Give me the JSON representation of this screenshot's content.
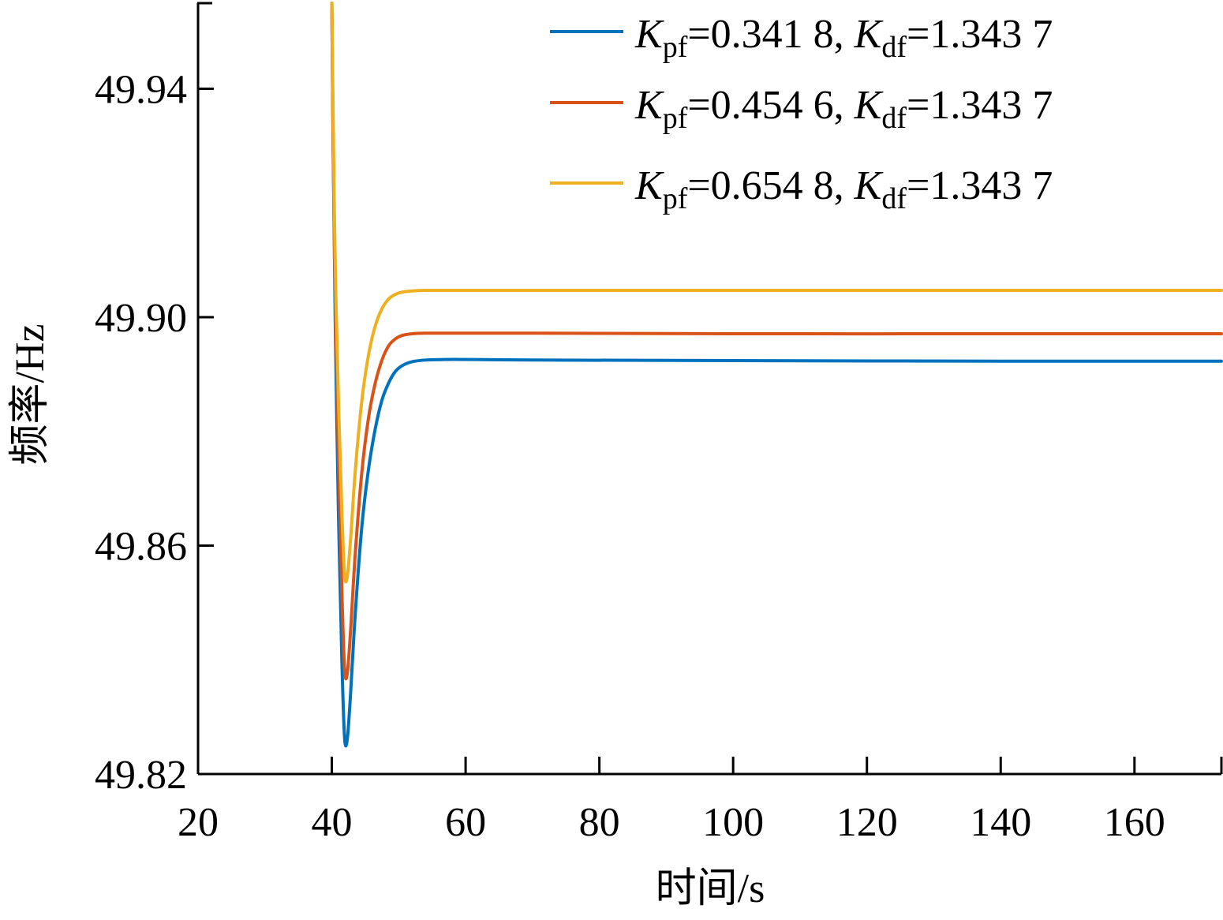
{
  "chart_data": {
    "type": "line",
    "title": "",
    "xlabel": "时间/s",
    "ylabel": "频率/Hz",
    "xlim": [
      20,
      173
    ],
    "ylim": [
      49.82,
      49.955
    ],
    "xticks": [
      20,
      40,
      60,
      80,
      100,
      120,
      140,
      160
    ],
    "yticks": [
      49.82,
      49.86,
      49.9,
      49.94
    ],
    "ytick_labels": [
      "49.82",
      "49.86",
      "49.90",
      "49.94"
    ],
    "grid": false,
    "legend_position": "top-right",
    "series": [
      {
        "name": "Kpf=0.341 8, Kdf=1.343 7",
        "legend": {
          "k1": "K",
          "s1": "pf",
          "v1": "=0.341 8, ",
          "k2": "K",
          "s2": "df",
          "v2": "=1.343 7"
        },
        "color": "#0072BD",
        "x": [
          40.0,
          40.2,
          40.5,
          41.0,
          41.5,
          41.9,
          42.3,
          42.8,
          43.5,
          44.5,
          45.5,
          46.5,
          47.5,
          48.5,
          49.5,
          50.5,
          52.0,
          54.0,
          57.0,
          60.0,
          70.0,
          100.0,
          140.0,
          173.0
        ],
        "y": [
          49.955,
          49.93,
          49.9,
          49.865,
          49.84,
          49.8265,
          49.826,
          49.834,
          49.848,
          49.8635,
          49.8735,
          49.8805,
          49.8855,
          49.8885,
          49.8905,
          49.8915,
          49.8922,
          49.8925,
          49.8926,
          49.8926,
          49.8925,
          49.8924,
          49.8923,
          49.8923
        ]
      },
      {
        "name": "Kpf=0.454 6, Kdf=1.343 7",
        "legend": {
          "k1": "K",
          "s1": "pf",
          "v1": "=0.454 6, ",
          "k2": "K",
          "s2": "df",
          "v2": "=1.343 7"
        },
        "color": "#D95319",
        "x": [
          40.0,
          40.2,
          40.5,
          41.0,
          41.5,
          41.9,
          42.3,
          42.8,
          43.5,
          44.5,
          45.5,
          46.5,
          47.5,
          48.5,
          49.5,
          50.5,
          52.0,
          54.0,
          57.0,
          60.0,
          70.0,
          100.0,
          140.0,
          173.0
        ],
        "y": [
          49.955,
          49.93,
          49.905,
          49.875,
          49.852,
          49.8385,
          49.8375,
          49.845,
          49.8585,
          49.873,
          49.8825,
          49.8885,
          49.8925,
          49.895,
          49.8962,
          49.8968,
          49.8971,
          49.8972,
          49.8972,
          49.8972,
          49.8972,
          49.8971,
          49.8971,
          49.8971
        ]
      },
      {
        "name": "Kpf=0.654 8, Kdf=1.343 7",
        "legend": {
          "k1": "K",
          "s1": "pf",
          "v1": "=0.654 8, ",
          "k2": "K",
          "s2": "df",
          "v2": "=1.343 7"
        },
        "color": "#EDB120",
        "x": [
          40.0,
          40.2,
          40.5,
          41.0,
          41.5,
          41.9,
          42.3,
          42.8,
          43.5,
          44.5,
          45.5,
          46.5,
          47.5,
          48.5,
          49.5,
          50.5,
          52.0,
          54.0,
          57.0,
          60.0,
          70.0,
          100.0,
          140.0,
          173.0
        ],
        "y": [
          49.955,
          49.935,
          49.91,
          49.885,
          49.866,
          49.855,
          49.8545,
          49.861,
          49.873,
          49.8855,
          49.8935,
          49.8985,
          49.9015,
          49.9032,
          49.904,
          49.9044,
          49.9046,
          49.9047,
          49.9047,
          49.9047,
          49.9047,
          49.9047,
          49.9047,
          49.9047
        ]
      }
    ]
  }
}
